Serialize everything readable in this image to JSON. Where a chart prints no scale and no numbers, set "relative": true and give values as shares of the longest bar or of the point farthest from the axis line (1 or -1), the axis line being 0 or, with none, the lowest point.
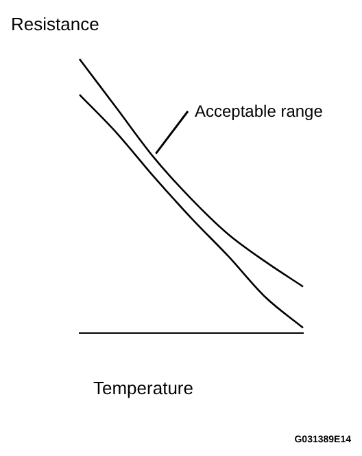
{
  "chart_data": {
    "type": "line",
    "ylabel": "Resistance",
    "xlabel": "Temperature",
    "relative": true,
    "categories": [
      null,
      null,
      null,
      null,
      null,
      null,
      null
    ],
    "series": [
      {
        "color": "#000000",
        "values": [
          1,
          0.82,
          0.64,
          0.49,
          0.36,
          0.26,
          0.17
        ]
      },
      {
        "color": "#000000",
        "values": [
          0.87,
          0.73,
          0.57,
          0.42,
          0.28,
          0.13,
          0.02
        ]
      }
    ],
    "annotations": [
      "Acceptable range",
      "G031389E14"
    ],
    "marker": "none",
    "line_style": "solid",
    "grid": false,
    "legend": false
  }
}
